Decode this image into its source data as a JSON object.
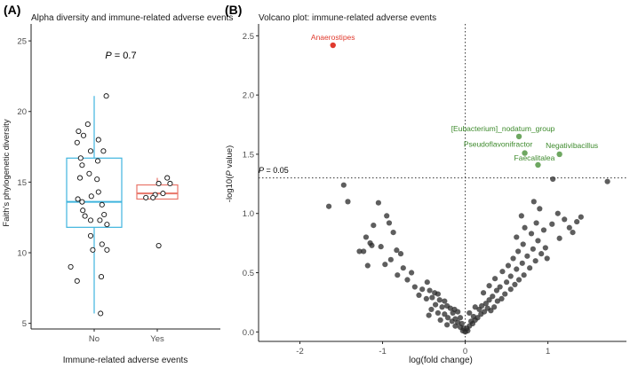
{
  "chart_data": [
    {
      "type": "box",
      "panel_label": "(A)",
      "title": "Alpha diversity and immune-related adverse events",
      "xlabel": "Immune-related adverse events",
      "ylabel": "Faith's phylogenetic diversity",
      "annotation": {
        "italic": "P",
        "rest": " = 0.7"
      },
      "categories": [
        "No",
        "Yes"
      ],
      "ylim": [
        4.6,
        26.2
      ],
      "yticks": [
        5,
        10,
        15,
        20,
        25
      ],
      "grid": false,
      "series": [
        {
          "category": "No",
          "color": "#3fb4de",
          "box": {
            "q1": 11.8,
            "median": 13.6,
            "q3": 16.7,
            "whisker_low": 5.7,
            "whisker_high": 21.1
          },
          "points": [
            {
              "offset": 0.17,
              "value": 21.1
            },
            {
              "offset": -0.09,
              "value": 19.1
            },
            {
              "offset": -0.22,
              "value": 18.6
            },
            {
              "offset": -0.15,
              "value": 18.3
            },
            {
              "offset": 0.06,
              "value": 18.0
            },
            {
              "offset": -0.24,
              "value": 17.8
            },
            {
              "offset": -0.05,
              "value": 17.2
            },
            {
              "offset": 0.13,
              "value": 17.2
            },
            {
              "offset": -0.19,
              "value": 16.7
            },
            {
              "offset": -0.17,
              "value": 16.2
            },
            {
              "offset": 0.05,
              "value": 16.5
            },
            {
              "offset": -0.07,
              "value": 15.6
            },
            {
              "offset": -0.2,
              "value": 15.3
            },
            {
              "offset": 0.04,
              "value": 15.2
            },
            {
              "offset": 0.06,
              "value": 14.3
            },
            {
              "offset": -0.04,
              "value": 14.0
            },
            {
              "offset": -0.23,
              "value": 13.8
            },
            {
              "offset": -0.17,
              "value": 13.6
            },
            {
              "offset": 0.11,
              "value": 13.4
            },
            {
              "offset": -0.16,
              "value": 13.0
            },
            {
              "offset": 0.14,
              "value": 12.7
            },
            {
              "offset": -0.13,
              "value": 12.6
            },
            {
              "offset": 0.08,
              "value": 12.3
            },
            {
              "offset": -0.05,
              "value": 12.3
            },
            {
              "offset": 0.18,
              "value": 12.0
            },
            {
              "offset": -0.05,
              "value": 11.2
            },
            {
              "offset": 0.11,
              "value": 10.6
            },
            {
              "offset": -0.02,
              "value": 10.2
            },
            {
              "offset": 0.18,
              "value": 10.2
            },
            {
              "offset": -0.33,
              "value": 9.0
            },
            {
              "offset": 0.1,
              "value": 8.3
            },
            {
              "offset": -0.24,
              "value": 8.0
            },
            {
              "offset": 0.09,
              "value": 5.7
            }
          ]
        },
        {
          "category": "Yes",
          "color": "#e8766a",
          "box": {
            "q1": 13.8,
            "median": 14.2,
            "q3": 14.8,
            "whisker_low": 13.8,
            "whisker_high": 15.3
          },
          "points": [
            {
              "offset": 0.14,
              "value": 15.3
            },
            {
              "offset": 0.02,
              "value": 14.9
            },
            {
              "offset": 0.18,
              "value": 14.9
            },
            {
              "offset": -0.03,
              "value": 14.1
            },
            {
              "offset": 0.08,
              "value": 14.2
            },
            {
              "offset": -0.06,
              "value": 13.9
            },
            {
              "offset": -0.16,
              "value": 13.9
            },
            {
              "offset": 0.02,
              "value": 10.5
            }
          ]
        }
      ]
    },
    {
      "type": "scatter",
      "panel_label": "(B)",
      "title": "Volcano plot: immune-related adverse events",
      "xlabel": "log(fold change)",
      "ylabel_parts": {
        "prefix": "-log10(",
        "italic": "P",
        "suffix": " value)"
      },
      "xlim": [
        -2.5,
        1.95
      ],
      "ylim": [
        -0.08,
        2.6
      ],
      "xticks": [
        -2,
        -1,
        0,
        1
      ],
      "yticks": [
        0.0,
        0.5,
        1.0,
        1.5,
        2.0,
        2.5
      ],
      "grid": false,
      "threshold": {
        "y": 1.3,
        "label": "P = 0.05",
        "label_italic": "P",
        "label_rest": " = 0.05"
      },
      "reference_x": 0,
      "labeled_points": [
        {
          "label": "Anaerostipes",
          "x": -1.6,
          "y": 2.42,
          "color": "#e03a2e"
        },
        {
          "label": "[Eubacterium]_nodatum_group",
          "x": 0.65,
          "y": 1.65,
          "color": "#3d8a2c"
        },
        {
          "label": "Pseudoflavonifractor",
          "x": 0.72,
          "y": 1.51,
          "color": "#3d8a2c"
        },
        {
          "label": "Negativibacillus",
          "x": 1.14,
          "y": 1.5,
          "color": "#3d8a2c"
        },
        {
          "label": "Faecalitalea",
          "x": 0.88,
          "y": 1.41,
          "color": "#3d8a2c"
        }
      ],
      "points": [
        [
          -1.65,
          1.06
        ],
        [
          -1.47,
          1.24
        ],
        [
          -1.42,
          1.1
        ],
        [
          -1.05,
          1.09
        ],
        [
          -0.95,
          0.98
        ],
        [
          -0.92,
          0.92
        ],
        [
          -1.11,
          0.9
        ],
        [
          -0.87,
          0.84
        ],
        [
          -1.2,
          0.8
        ],
        [
          -1.15,
          0.75
        ],
        [
          -1.13,
          0.73
        ],
        [
          -1.02,
          0.72
        ],
        [
          -1.28,
          0.68
        ],
        [
          -1.23,
          0.68
        ],
        [
          -0.83,
          0.69
        ],
        [
          -0.78,
          0.66
        ],
        [
          -0.9,
          0.61
        ],
        [
          -0.97,
          0.57
        ],
        [
          -1.18,
          0.56
        ],
        [
          -0.75,
          0.54
        ],
        [
          -0.65,
          0.5
        ],
        [
          -0.82,
          0.48
        ],
        [
          -0.7,
          0.44
        ],
        [
          -0.46,
          0.42
        ],
        [
          -0.61,
          0.38
        ],
        [
          -0.52,
          0.36
        ],
        [
          -0.43,
          0.35
        ],
        [
          -0.37,
          0.33
        ],
        [
          -0.56,
          0.31
        ],
        [
          -0.33,
          0.32
        ],
        [
          -0.4,
          0.29
        ],
        [
          -0.47,
          0.28
        ],
        [
          -0.31,
          0.27
        ],
        [
          -0.25,
          0.26
        ],
        [
          -0.36,
          0.23
        ],
        [
          -0.28,
          0.21
        ],
        [
          -0.22,
          0.22
        ],
        [
          -0.41,
          0.19
        ],
        [
          -0.18,
          0.2
        ],
        [
          -0.13,
          0.19
        ],
        [
          -0.33,
          0.16
        ],
        [
          -0.25,
          0.15
        ],
        [
          -0.15,
          0.16
        ],
        [
          -0.09,
          0.17
        ],
        [
          -0.44,
          0.14
        ],
        [
          -0.21,
          0.12
        ],
        [
          -0.12,
          0.11
        ],
        [
          -0.06,
          0.12
        ],
        [
          -0.3,
          0.1
        ],
        [
          -0.16,
          0.09
        ],
        [
          -0.09,
          0.08
        ],
        [
          -0.04,
          0.07
        ],
        [
          -0.22,
          0.06
        ],
        [
          -0.12,
          0.05
        ],
        [
          -0.06,
          0.04
        ],
        [
          -0.02,
          0.03
        ],
        [
          -0.03,
          0.01
        ],
        [
          0.0,
          0.0
        ],
        [
          0.03,
          0.01
        ],
        [
          0.02,
          0.03
        ],
        [
          0.05,
          0.05
        ],
        [
          0.09,
          0.07
        ],
        [
          0.07,
          0.09
        ],
        [
          0.12,
          0.1
        ],
        [
          0.15,
          0.12
        ],
        [
          0.1,
          0.13
        ],
        [
          0.19,
          0.15
        ],
        [
          0.05,
          0.16
        ],
        [
          0.23,
          0.17
        ],
        [
          0.17,
          0.19
        ],
        [
          0.27,
          0.2
        ],
        [
          0.31,
          0.18
        ],
        [
          0.12,
          0.21
        ],
        [
          0.2,
          0.22
        ],
        [
          0.35,
          0.21
        ],
        [
          0.25,
          0.24
        ],
        [
          0.39,
          0.26
        ],
        [
          0.29,
          0.27
        ],
        [
          0.44,
          0.28
        ],
        [
          0.33,
          0.3
        ],
        [
          0.48,
          0.32
        ],
        [
          0.22,
          0.33
        ],
        [
          0.38,
          0.35
        ],
        [
          0.55,
          0.36
        ],
        [
          0.42,
          0.38
        ],
        [
          0.29,
          0.39
        ],
        [
          0.6,
          0.4
        ],
        [
          0.5,
          0.42
        ],
        [
          0.65,
          0.44
        ],
        [
          0.36,
          0.45
        ],
        [
          0.55,
          0.47
        ],
        [
          0.71,
          0.48
        ],
        [
          0.45,
          0.51
        ],
        [
          0.62,
          0.53
        ],
        [
          0.78,
          0.54
        ],
        [
          0.52,
          0.56
        ],
        [
          0.69,
          0.58
        ],
        [
          0.85,
          0.6
        ],
        [
          0.58,
          0.62
        ],
        [
          0.75,
          0.64
        ],
        [
          0.92,
          0.66
        ],
        [
          0.64,
          0.68
        ],
        [
          0.82,
          0.7
        ],
        [
          0.97,
          0.71
        ],
        [
          0.7,
          0.74
        ],
        [
          0.88,
          0.77
        ],
        [
          0.62,
          0.8
        ],
        [
          0.8,
          0.83
        ],
        [
          0.95,
          0.86
        ],
        [
          0.72,
          0.88
        ],
        [
          0.86,
          0.92
        ],
        [
          0.68,
          0.98
        ],
        [
          0.9,
          1.04
        ],
        [
          0.83,
          1.1
        ],
        [
          1.05,
          0.91
        ],
        [
          1.14,
          0.79
        ],
        [
          0.99,
          0.62
        ],
        [
          1.2,
          0.95
        ],
        [
          1.26,
          0.88
        ],
        [
          1.12,
          1.0
        ],
        [
          1.35,
          0.93
        ],
        [
          1.3,
          0.84
        ],
        [
          1.4,
          0.97
        ],
        [
          1.06,
          1.29
        ],
        [
          1.72,
          1.27
        ]
      ]
    }
  ]
}
